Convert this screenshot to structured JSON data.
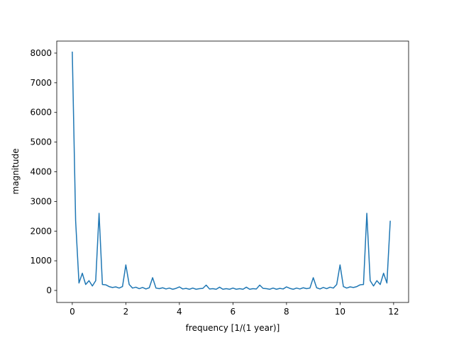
{
  "chart_data": {
    "type": "line",
    "xlabel": "frequency [1/(1 year)]",
    "ylabel": "magnitude",
    "x": [
      0,
      0.125,
      0.25,
      0.375,
      0.5,
      0.625,
      0.75,
      0.875,
      1,
      1.125,
      1.25,
      1.375,
      1.5,
      1.625,
      1.75,
      1.875,
      2,
      2.125,
      2.25,
      2.375,
      2.5,
      2.625,
      2.75,
      2.875,
      3,
      3.125,
      3.25,
      3.375,
      3.5,
      3.625,
      3.75,
      3.875,
      4,
      4.125,
      4.25,
      4.375,
      4.5,
      4.625,
      4.75,
      4.875,
      5,
      5.125,
      5.25,
      5.375,
      5.5,
      5.625,
      5.75,
      5.875,
      6,
      6.125,
      6.25,
      6.375,
      6.5,
      6.625,
      6.75,
      6.875,
      7,
      7.125,
      7.25,
      7.375,
      7.5,
      7.625,
      7.75,
      7.875,
      8,
      8.125,
      8.25,
      8.375,
      8.5,
      8.625,
      8.75,
      8.875,
      9,
      9.125,
      9.25,
      9.375,
      9.5,
      9.625,
      9.75,
      9.875,
      10,
      10.125,
      10.25,
      10.375,
      10.5,
      10.625,
      10.75,
      10.875,
      11,
      11.125,
      11.25,
      11.375,
      11.5,
      11.625,
      11.75,
      11.875
    ],
    "series": [
      {
        "color": "#1f77b4",
        "values": [
          8050,
          2350,
          250,
          580,
          200,
          330,
          150,
          330,
          2600,
          200,
          190,
          130,
          100,
          120,
          80,
          130,
          860,
          200,
          80,
          110,
          60,
          100,
          50,
          90,
          430,
          80,
          60,
          90,
          50,
          80,
          40,
          70,
          120,
          50,
          70,
          40,
          80,
          40,
          60,
          70,
          180,
          50,
          60,
          40,
          110,
          40,
          60,
          40,
          80,
          40,
          60,
          40,
          110,
          40,
          60,
          50,
          180,
          70,
          60,
          40,
          80,
          40,
          70,
          50,
          120,
          70,
          40,
          80,
          50,
          90,
          60,
          80,
          430,
          90,
          50,
          100,
          60,
          110,
          80,
          200,
          860,
          130,
          80,
          120,
          100,
          130,
          190,
          200,
          2600,
          330,
          150,
          330,
          200,
          580,
          250,
          2350
        ]
      }
    ],
    "xlim": [
      -0.58,
      12.56
    ],
    "ylim": [
      -405,
      8405
    ],
    "xticks": [
      0,
      2,
      4,
      6,
      8,
      10,
      12
    ],
    "yticks": [
      0,
      1000,
      2000,
      3000,
      4000,
      5000,
      6000,
      7000,
      8000
    ]
  }
}
